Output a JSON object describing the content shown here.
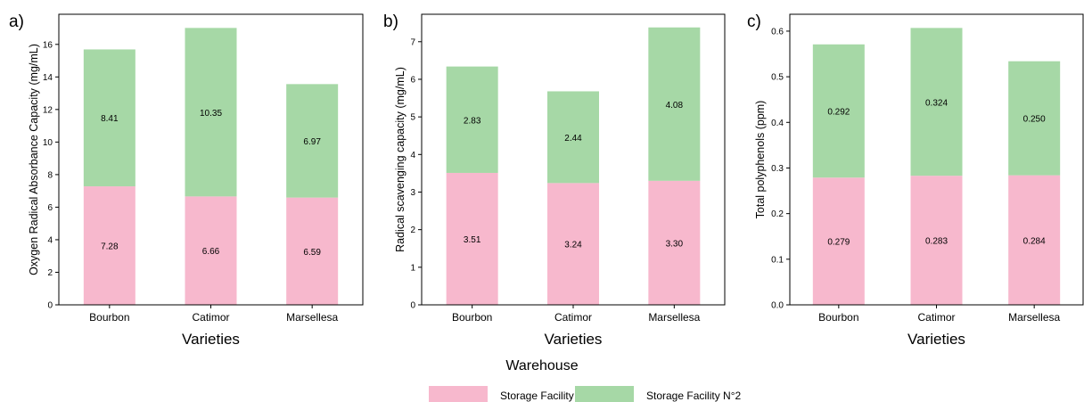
{
  "colors": {
    "storage1": "#f7b8cd",
    "storage2": "#a6d8a6"
  },
  "chart_data": [
    {
      "type": "bar",
      "stacked": true,
      "panel_label": "a)",
      "xlabel": "Varieties",
      "ylabel": "Oxygen Radical Absorbance Capacity (mg/mL)",
      "categories": [
        "Bourbon",
        "Catimor",
        "Marsellesa"
      ],
      "ylim": [
        0,
        17.85
      ],
      "yticks": [
        0,
        2,
        4,
        6,
        8,
        10,
        12,
        14,
        16
      ],
      "ytick_decimals": 0,
      "series": [
        {
          "name": "Storage Facility N°1",
          "values": [
            7.28,
            6.66,
            6.59
          ],
          "labels": [
            "7.28",
            "6.66",
            "6.59"
          ]
        },
        {
          "name": "Storage Facility N°2",
          "values": [
            8.41,
            10.35,
            6.97
          ],
          "labels": [
            "8.41",
            "10.35",
            "6.97"
          ]
        }
      ]
    },
    {
      "type": "bar",
      "stacked": true,
      "panel_label": "b)",
      "xlabel": "Varieties",
      "ylabel": "Radical scavenging capacity (mg/mL)",
      "categories": [
        "Bourbon",
        "Catimor",
        "Marsellesa"
      ],
      "ylim": [
        0,
        7.73
      ],
      "yticks": [
        0,
        1,
        2,
        3,
        4,
        5,
        6,
        7
      ],
      "ytick_decimals": 0,
      "series": [
        {
          "name": "Storage Facility N°1",
          "values": [
            3.51,
            3.24,
            3.3
          ],
          "labels": [
            "3.51",
            "3.24",
            "3.30"
          ]
        },
        {
          "name": "Storage Facility N°2",
          "values": [
            2.83,
            2.44,
            4.08
          ],
          "labels": [
            "2.83",
            "2.44",
            "4.08"
          ]
        }
      ]
    },
    {
      "type": "bar",
      "stacked": true,
      "panel_label": "c)",
      "xlabel": "Varieties",
      "ylabel": "Total polyphenols (ppm)",
      "categories": [
        "Bourbon",
        "Catimor",
        "Marsellesa"
      ],
      "ylim": [
        0,
        0.637
      ],
      "yticks": [
        0.0,
        0.1,
        0.2,
        0.3,
        0.4,
        0.5,
        0.6
      ],
      "ytick_decimals": 1,
      "series": [
        {
          "name": "Storage Facility N°1",
          "values": [
            0.279,
            0.283,
            0.284
          ],
          "labels": [
            "0.279",
            "0.283",
            "0.284"
          ]
        },
        {
          "name": "Storage Facility N°2",
          "values": [
            0.292,
            0.324,
            0.25
          ],
          "labels": [
            "0.292",
            "0.324",
            "0.250"
          ]
        }
      ]
    }
  ],
  "legend": {
    "title": "Warehouse",
    "items": [
      {
        "label": "Storage Facility N°1",
        "color_key": "storage1"
      },
      {
        "label": "Storage Facility N°2",
        "color_key": "storage2"
      }
    ]
  }
}
